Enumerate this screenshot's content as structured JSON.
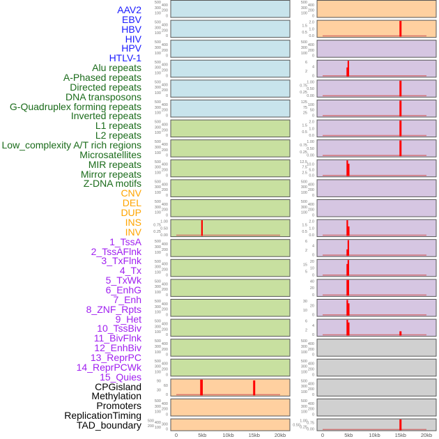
{
  "colors": {
    "virus": "#1a1aff",
    "repeat": "#1a6b1a",
    "sv": "#ffa500",
    "chromhmm": "#a020f0",
    "other": "#000000",
    "bg_virus": "#c8e4ec",
    "bg_repeat": "#c8e0a0",
    "bg_sv": "#ffd0a0",
    "bg_chromhmm": "#d6c6e2",
    "bg_other": "#d0d0d0",
    "bar": "#ff0000",
    "baseline": "#d06060"
  },
  "chart_data": {
    "type": "bar",
    "xlabel": "",
    "xlim_kb": [
      0,
      20
    ],
    "xticks": [
      {
        "v": 0,
        "label": "0"
      },
      {
        "v": 5,
        "label": "5kb"
      },
      {
        "v": 10,
        "label": "10kb"
      },
      {
        "v": 15,
        "label": "15kb"
      },
      {
        "v": 20,
        "label": "20kb"
      }
    ],
    "tracks": [
      {
        "name": "AAV2",
        "group": "virus",
        "yticks": [
          "0",
          "100",
          "200",
          "300",
          "400",
          "500"
        ],
        "bars": []
      },
      {
        "name": "EBV",
        "group": "virus",
        "yticks": [
          "0",
          "100",
          "200",
          "300",
          "400",
          "500"
        ],
        "bars": []
      },
      {
        "name": "HBV",
        "group": "virus",
        "yticks": [
          "0",
          "100",
          "200",
          "300",
          "400",
          "500"
        ],
        "bars": []
      },
      {
        "name": "HIV",
        "group": "virus",
        "yticks": [
          "0",
          "100",
          "200",
          "300",
          "400",
          "500"
        ],
        "bars": []
      },
      {
        "name": "HPV",
        "group": "virus",
        "yticks": [
          "0",
          "100",
          "200",
          "300",
          "400",
          "500"
        ],
        "bars": []
      },
      {
        "name": "HTLV-1",
        "group": "virus",
        "yticks": [
          "0",
          "100",
          "200",
          "300",
          "400",
          "500"
        ],
        "bars": []
      },
      {
        "name": "Alu repeats",
        "group": "repeat",
        "yticks": [
          "0",
          "100",
          "200",
          "300",
          "400",
          "500"
        ],
        "bars": []
      },
      {
        "name": "A-Phased repeats",
        "group": "repeat",
        "yticks": [
          "0",
          "100",
          "200",
          "300",
          "400",
          "500"
        ],
        "bars": []
      },
      {
        "name": "Directed repeats",
        "group": "repeat",
        "yticks": [
          "0",
          "100",
          "200",
          "300",
          "400",
          "500"
        ],
        "bars": []
      },
      {
        "name": "DNA transposons",
        "group": "repeat",
        "yticks": [
          "0",
          "100",
          "200",
          "300",
          "400",
          "500"
        ],
        "bars": []
      },
      {
        "name": "G-Quadruplex forming repeats",
        "group": "repeat",
        "yticks": [
          "0",
          "100",
          "200",
          "300",
          "400",
          "500"
        ],
        "bars": []
      },
      {
        "name": "Inverted repeats",
        "group": "repeat",
        "yticks": [
          "0.00",
          "0.25",
          "0.50",
          "0.75",
          "1.00"
        ],
        "bars": [
          {
            "x0": 4.8,
            "x1": 5.1,
            "y": 1.0
          }
        ]
      },
      {
        "name": "L1 repeats",
        "group": "repeat",
        "yticks": [
          "0",
          "100",
          "200",
          "300",
          "400",
          "500"
        ],
        "bars": []
      },
      {
        "name": "L2 repeats",
        "group": "repeat",
        "yticks": [
          "0",
          "100",
          "200",
          "300",
          "400",
          "500"
        ],
        "bars": []
      },
      {
        "name": "Low_complexity A/T rich regions",
        "group": "repeat",
        "yticks": [
          "0",
          "100",
          "200",
          "300",
          "400",
          "500"
        ],
        "bars": []
      },
      {
        "name": "Microsatellites",
        "group": "repeat",
        "yticks": [
          "0",
          "100",
          "200",
          "300",
          "400",
          "500"
        ],
        "bars": []
      },
      {
        "name": "MIR repeats",
        "group": "repeat",
        "yticks": [
          "0",
          "100",
          "200",
          "300",
          "400",
          "500"
        ],
        "bars": []
      },
      {
        "name": "Mirror repeats",
        "group": "repeat",
        "yticks": [
          "0",
          "100",
          "200",
          "300",
          "400",
          "500"
        ],
        "bars": []
      },
      {
        "name": "Z-DNA motifs",
        "group": "repeat",
        "yticks": [
          "0",
          "100",
          "200",
          "300",
          "400",
          "500"
        ],
        "bars": []
      },
      {
        "name": "CNV",
        "group": "sv",
        "yticks": [
          "0",
          "30",
          "60",
          "90"
        ],
        "bars": [
          {
            "x0": 4.6,
            "x1": 5.1,
            "y": 100
          },
          {
            "x0": 14.8,
            "x1": 15.2,
            "y": 95
          }
        ]
      },
      {
        "name": "DEL",
        "group": "sv",
        "yticks": [
          "0",
          "100",
          "200",
          "300",
          "400",
          "500"
        ],
        "bars": []
      },
      {
        "name": "DUP",
        "group": "sv",
        "yticks": [
          "0",
          "100",
          "200",
          "300",
          "400",
          "500"
        ],
        "bars": []
      },
      {
        "name": "INS",
        "group": "sv",
        "yticks": [
          "0",
          "100",
          "200",
          "300",
          "400",
          "500"
        ],
        "bars": []
      },
      {
        "name": "INV",
        "group": "sv",
        "yticks": [
          "0.0",
          "0.5",
          "1.0",
          "1.5",
          "2.0"
        ],
        "bars": [
          {
            "x0": 14.8,
            "x1": 15.2,
            "y": 2.0
          }
        ]
      },
      {
        "name": "1_TssA",
        "group": "chromhmm",
        "yticks": [
          "0",
          "100",
          "200",
          "300",
          "400",
          "500"
        ],
        "bars": []
      },
      {
        "name": "2_TssAFlnk",
        "group": "chromhmm",
        "yticks": [
          "0",
          "2",
          "4",
          "6"
        ],
        "bars": [
          {
            "x0": 4.6,
            "x1": 4.8,
            "y": 3.5
          },
          {
            "x0": 4.8,
            "x1": 5.1,
            "y": 6.3
          }
        ]
      },
      {
        "name": "3_TxFlnk",
        "group": "chromhmm",
        "yticks": [
          "0.00",
          "0.25",
          "0.50",
          "0.75",
          "1.00"
        ],
        "bars": [
          {
            "x0": 14.8,
            "x1": 15.2,
            "y": 1.0
          }
        ]
      },
      {
        "name": "4_Tx",
        "group": "chromhmm",
        "yticks": [
          "0",
          "25",
          "50",
          "75",
          "100",
          "125"
        ],
        "bars": [
          {
            "x0": 14.8,
            "x1": 15.2,
            "y": 128
          }
        ]
      },
      {
        "name": "5_TxWk",
        "group": "chromhmm",
        "yticks": [
          "0.0",
          "0.5",
          "1.0",
          "1.5",
          "2.0"
        ],
        "bars": [
          {
            "x0": 14.8,
            "x1": 15.2,
            "y": 2.0
          }
        ]
      },
      {
        "name": "6_EnhG",
        "group": "chromhmm",
        "yticks": [
          "0.00",
          "0.25",
          "0.50",
          "0.75",
          "1.00"
        ],
        "bars": [
          {
            "x0": 14.8,
            "x1": 15.2,
            "y": 1.0
          }
        ]
      },
      {
        "name": "7_Enh",
        "group": "chromhmm",
        "yticks": [
          "0.0",
          "2.5",
          "5.0",
          "7.5",
          "10.0",
          "12.5"
        ],
        "bars": [
          {
            "x0": 4.6,
            "x1": 4.9,
            "y": 12.8
          },
          {
            "x0": 4.9,
            "x1": 5.1,
            "y": 10
          }
        ]
      },
      {
        "name": "8_ZNF_Rpts",
        "group": "chromhmm",
        "yticks": [
          "0",
          "100",
          "200",
          "300",
          "400",
          "500"
        ],
        "bars": []
      },
      {
        "name": "9_Het",
        "group": "chromhmm",
        "yticks": [
          "0",
          "100",
          "200",
          "300",
          "400",
          "500"
        ],
        "bars": []
      },
      {
        "name": "10_TssBiv",
        "group": "chromhmm",
        "yticks": [
          "0.0",
          "0.5",
          "1.0",
          "1.5",
          "2.0"
        ],
        "bars": [
          {
            "x0": 4.6,
            "x1": 4.9,
            "y": 2.05
          },
          {
            "x0": 4.9,
            "x1": 5.1,
            "y": 1.2
          }
        ]
      },
      {
        "name": "11_BivFlnk",
        "group": "chromhmm",
        "yticks": [
          "0",
          "2",
          "4",
          "6"
        ],
        "bars": [
          {
            "x0": 4.6,
            "x1": 4.8,
            "y": 2.5
          },
          {
            "x0": 4.8,
            "x1": 5.1,
            "y": 6.5
          }
        ]
      },
      {
        "name": "12_EnhBiv",
        "group": "chromhmm",
        "yticks": [
          "0",
          "5",
          "10",
          "15",
          "20"
        ],
        "bars": [
          {
            "x0": 4.6,
            "x1": 4.8,
            "y": 17
          },
          {
            "x0": 4.8,
            "x1": 5.1,
            "y": 23
          }
        ]
      },
      {
        "name": "13_ReprPC",
        "group": "chromhmm",
        "yticks": [
          "0",
          "20",
          "40"
        ],
        "bars": [
          {
            "x0": 4.6,
            "x1": 5.1,
            "y": 55
          }
        ]
      },
      {
        "name": "14_ReprPCWk",
        "group": "chromhmm",
        "yticks": [
          "0",
          "10",
          "20",
          "30"
        ],
        "bars": [
          {
            "x0": 4.6,
            "x1": 4.9,
            "y": 31
          },
          {
            "x0": 4.9,
            "x1": 5.1,
            "y": 24
          }
        ]
      },
      {
        "name": "15_Quies",
        "group": "chromhmm",
        "yticks": [
          "0",
          "2",
          "4",
          "6"
        ],
        "bars": [
          {
            "x0": 4.6,
            "x1": 4.9,
            "y": 6.3
          },
          {
            "x0": 4.9,
            "x1": 5.1,
            "y": 5.2
          },
          {
            "x0": 14.8,
            "x1": 15.2,
            "y": 1.5
          }
        ]
      },
      {
        "name": "CPGisland",
        "group": "other",
        "yticks": [
          "0",
          "100",
          "200",
          "300",
          "400",
          "500"
        ],
        "bars": []
      },
      {
        "name": "Methylation",
        "group": "other",
        "yticks": [
          "0",
          "100",
          "200",
          "300",
          "400",
          "500"
        ],
        "bars": []
      },
      {
        "name": "Promoters",
        "group": "other",
        "yticks": [
          "0",
          "100",
          "200",
          "300",
          "400",
          "500"
        ],
        "bars": []
      },
      {
        "name": "ReplicationTiming",
        "group": "other",
        "yticks": [
          "0",
          "100",
          "200",
          "300",
          "400",
          "500"
        ],
        "bars": []
      },
      {
        "name": "TAD_boundary",
        "group": "other",
        "yticks": [
          "0.00",
          "0.25",
          "0.50",
          "0.75",
          "1.00"
        ],
        "bars": [
          {
            "x0": 14.8,
            "x1": 15.2,
            "y": 1.0
          }
        ]
      }
    ]
  }
}
